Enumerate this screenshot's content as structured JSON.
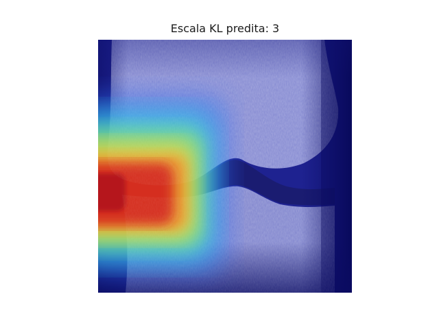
{
  "figure": {
    "title": "Escala KL predita: 3"
  },
  "image": {
    "subject": "knee-xray-with-heatmap-overlay",
    "colors": {
      "base_dark_blue": "#1b1f8a",
      "hot_red": "#d21c1c",
      "warm_yellow": "#e8d23a",
      "cyan": "#39d0e0",
      "bone_light": "#b8bcec"
    }
  }
}
